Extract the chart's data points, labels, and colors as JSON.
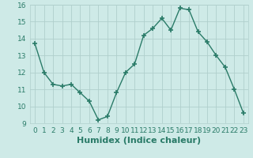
{
  "x": [
    0,
    1,
    2,
    3,
    4,
    5,
    6,
    7,
    8,
    9,
    10,
    11,
    12,
    13,
    14,
    15,
    16,
    17,
    18,
    19,
    20,
    21,
    22,
    23
  ],
  "y": [
    13.7,
    12.0,
    11.3,
    11.2,
    11.3,
    10.8,
    10.3,
    9.2,
    9.4,
    10.8,
    12.0,
    12.5,
    14.2,
    14.6,
    15.2,
    14.5,
    15.8,
    15.7,
    14.4,
    13.8,
    13.0,
    12.3,
    11.0,
    9.6
  ],
  "line_color": "#2a7b68",
  "marker": "+",
  "marker_size": 4,
  "bg_color": "#ceeae7",
  "grid_color": "#b0cfcc",
  "xlabel": "Humidex (Indice chaleur)",
  "xlim": [
    -0.5,
    23.5
  ],
  "ylim": [
    9,
    16
  ],
  "yticks": [
    9,
    10,
    11,
    12,
    13,
    14,
    15,
    16
  ],
  "xticks": [
    0,
    1,
    2,
    3,
    4,
    5,
    6,
    7,
    8,
    9,
    10,
    11,
    12,
    13,
    14,
    15,
    16,
    17,
    18,
    19,
    20,
    21,
    22,
    23
  ],
  "xtick_labels": [
    "0",
    "1",
    "2",
    "3",
    "4",
    "5",
    "6",
    "7",
    "8",
    "9",
    "10",
    "11",
    "12",
    "13",
    "14",
    "15",
    "16",
    "17",
    "18",
    "19",
    "20",
    "21",
    "22",
    "23"
  ],
  "tick_fontsize": 6.5,
  "xlabel_fontsize": 8,
  "lw": 1.0
}
